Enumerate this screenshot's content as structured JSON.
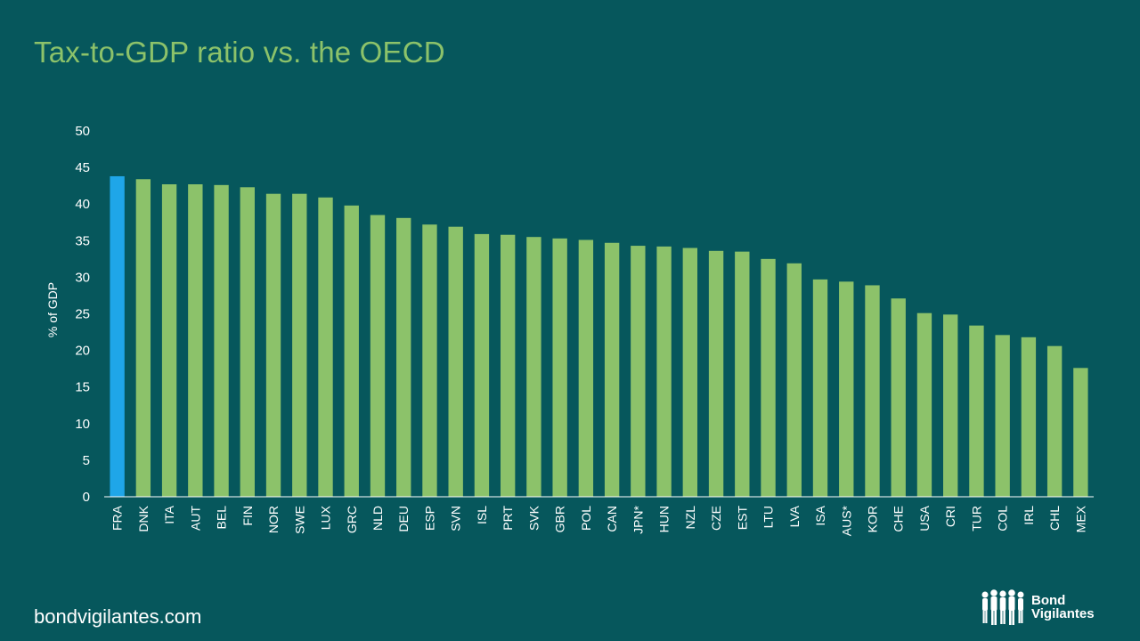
{
  "header": {
    "title": "Tax-to-GDP ratio vs. the OECD"
  },
  "footer": {
    "site": "bondvigilantes.com"
  },
  "logo": {
    "line1": "Bond",
    "line2": "Vigilantes"
  },
  "colors": {
    "highlight": "#1FA6E8",
    "bar": "#8CC26A",
    "axis": "#FFFFFF"
  },
  "chart_data": {
    "type": "bar",
    "title": "Tax-to-GDP ratio vs. the OECD",
    "xlabel": "",
    "ylabel": "% of GDP",
    "ylim": [
      0,
      50
    ],
    "yticks": [
      0,
      5,
      10,
      15,
      20,
      25,
      30,
      35,
      40,
      45,
      50
    ],
    "grid": false,
    "highlight_category": "FRA",
    "categories": [
      "FRA",
      "DNK",
      "ITA",
      "AUT",
      "BEL",
      "FIN",
      "NOR",
      "SWE",
      "LUX",
      "GRC",
      "NLD",
      "DEU",
      "ESP",
      "SVN",
      "ISL",
      "PRT",
      "SVK",
      "GBR",
      "POL",
      "CAN",
      "JPN*",
      "HUN",
      "NZL",
      "CZE",
      "EST",
      "LTU",
      "LVA",
      "ISA",
      "AUS*",
      "KOR",
      "CHE",
      "USA",
      "CRI",
      "TUR",
      "COL",
      "IRL",
      "CHL",
      "MEX"
    ],
    "values": [
      43.8,
      43.4,
      42.7,
      42.7,
      42.6,
      42.3,
      41.4,
      41.4,
      40.9,
      39.8,
      38.5,
      38.1,
      37.2,
      36.9,
      35.9,
      35.8,
      35.5,
      35.3,
      35.1,
      34.7,
      34.3,
      34.2,
      34.0,
      33.6,
      33.5,
      32.5,
      31.9,
      29.7,
      29.4,
      28.9,
      27.1,
      25.1,
      24.9,
      23.4,
      22.1,
      21.8,
      20.6,
      17.6
    ]
  }
}
